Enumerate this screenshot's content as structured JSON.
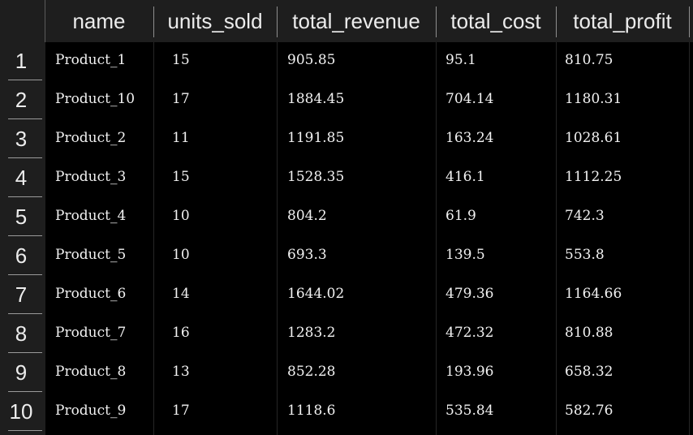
{
  "table": {
    "columns": [
      "name",
      "units_sold",
      "total_revenue",
      "total_cost",
      "total_profit"
    ],
    "row_numbers": [
      "1",
      "2",
      "3",
      "4",
      "5",
      "6",
      "7",
      "8",
      "9",
      "10"
    ],
    "rows": [
      [
        "Product_1",
        "15",
        "905.85",
        "95.1",
        "810.75"
      ],
      [
        "Product_10",
        "17",
        "1884.45",
        "704.14",
        "1180.31"
      ],
      [
        "Product_2",
        "11",
        "1191.85",
        "163.24",
        "1028.61"
      ],
      [
        "Product_3",
        "15",
        "1528.35",
        "416.1",
        "1112.25"
      ],
      [
        "Product_4",
        "10",
        "804.2",
        "61.9",
        "742.3"
      ],
      [
        "Product_5",
        "10",
        "693.3",
        "139.5",
        "553.8"
      ],
      [
        "Product_6",
        "14",
        "1644.02",
        "479.36",
        "1164.66"
      ],
      [
        "Product_7",
        "16",
        "1283.2",
        "472.32",
        "810.88"
      ],
      [
        "Product_8",
        "13",
        "852.28",
        "193.96",
        "658.32"
      ],
      [
        "Product_9",
        "17",
        "1118.6",
        "535.84",
        "582.76"
      ]
    ]
  }
}
